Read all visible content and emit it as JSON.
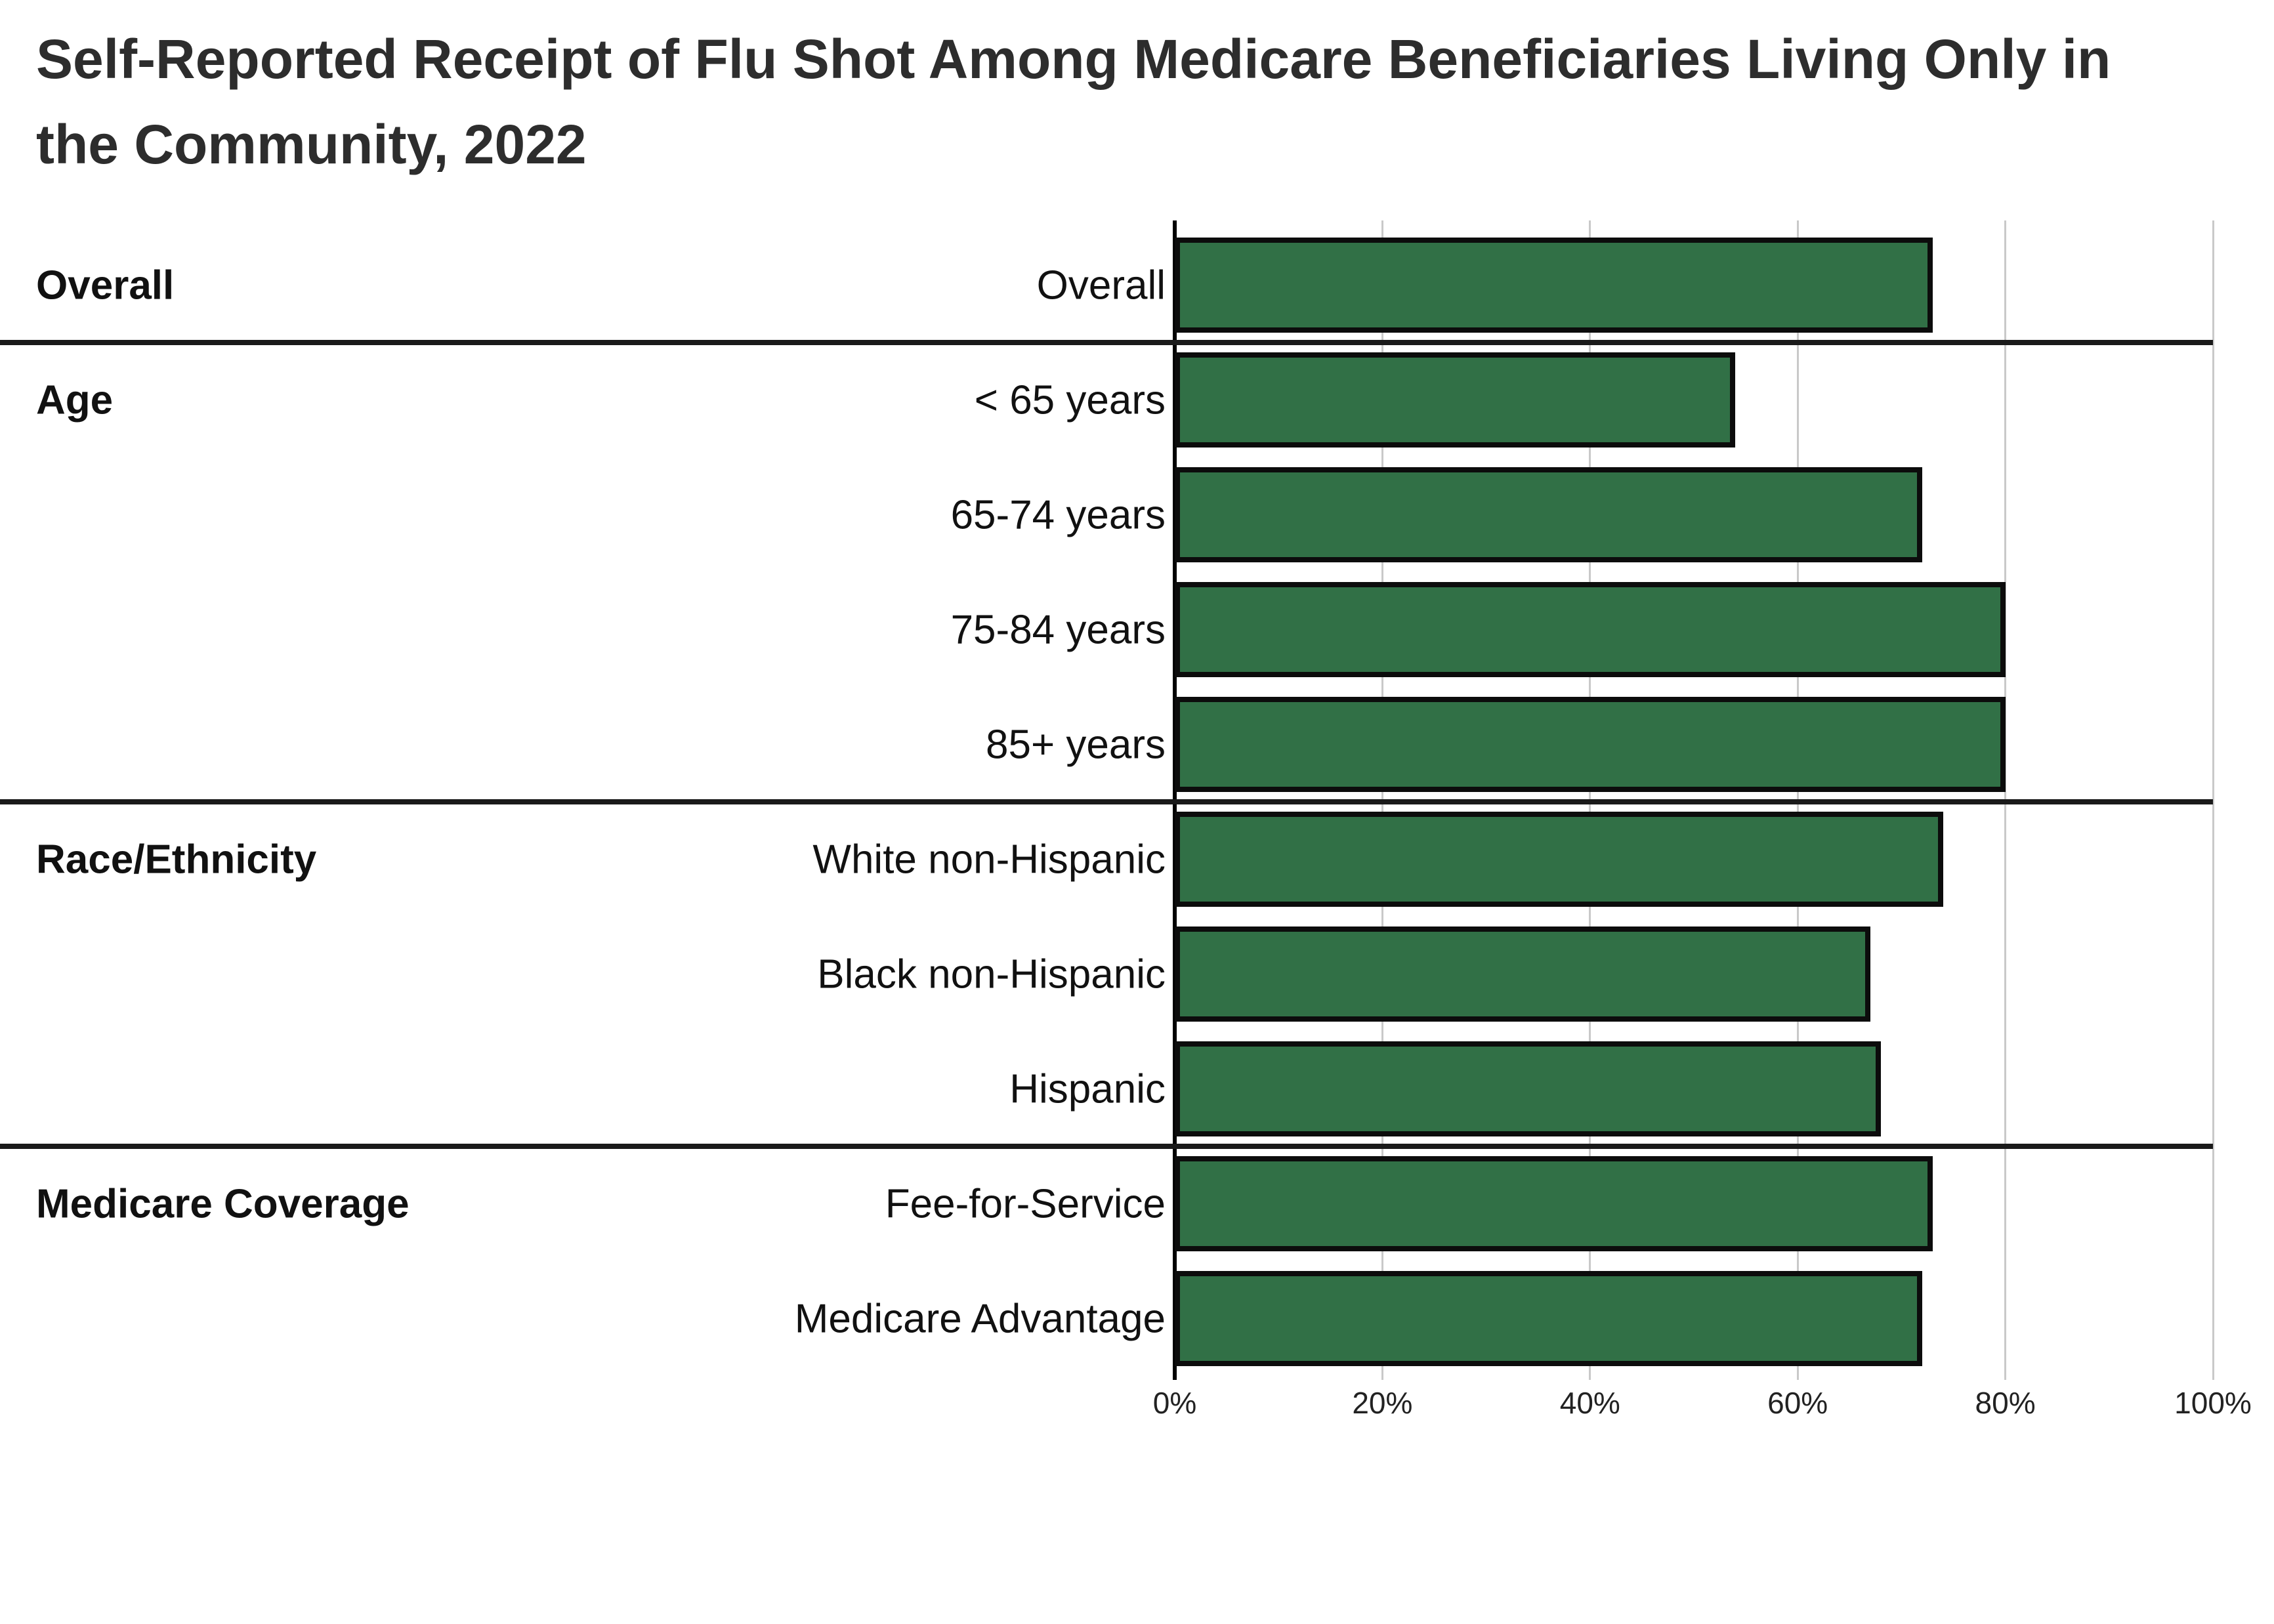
{
  "title": "Self-Reported Receipt of Flu Shot Among Medicare Beneficiaries Living Only in the Community, 2022",
  "chart_data": {
    "type": "bar",
    "orientation": "horizontal",
    "title": "Self-Reported Receipt of Flu Shot Among Medicare Beneficiaries Living Only in the Community, 2022",
    "xlabel": "",
    "ylabel": "",
    "value_unit": "percent",
    "xlim": [
      0,
      100
    ],
    "grid": true,
    "legend": false,
    "bar_fill_color": "#317046",
    "bar_border_color": "#0c0c0c",
    "gridline_color": "#c9c9c9",
    "x_ticks": [
      {
        "value": 0,
        "label": "0%"
      },
      {
        "value": 20,
        "label": "20%"
      },
      {
        "value": 40,
        "label": "40%"
      },
      {
        "value": 60,
        "label": "60%"
      },
      {
        "value": 80,
        "label": "80%"
      },
      {
        "value": 100,
        "label": "100%"
      }
    ],
    "groups": [
      {
        "label": "Overall",
        "rows": [
          {
            "label": "Overall",
            "value": 73
          }
        ]
      },
      {
        "label": "Age",
        "rows": [
          {
            "label": "< 65 years",
            "value": 54
          },
          {
            "label": "65-74 years",
            "value": 72
          },
          {
            "label": "75-84 years",
            "value": 80
          },
          {
            "label": "85+ years",
            "value": 80
          }
        ]
      },
      {
        "label": "Race/Ethnicity",
        "rows": [
          {
            "label": "White non-Hispanic",
            "value": 74
          },
          {
            "label": "Black non-Hispanic",
            "value": 67
          },
          {
            "label": "Hispanic",
            "value": 68
          }
        ]
      },
      {
        "label": "Medicare Coverage",
        "rows": [
          {
            "label": "Fee-for-Service",
            "value": 73
          },
          {
            "label": "Medicare Advantage",
            "value": 72
          }
        ]
      }
    ]
  }
}
